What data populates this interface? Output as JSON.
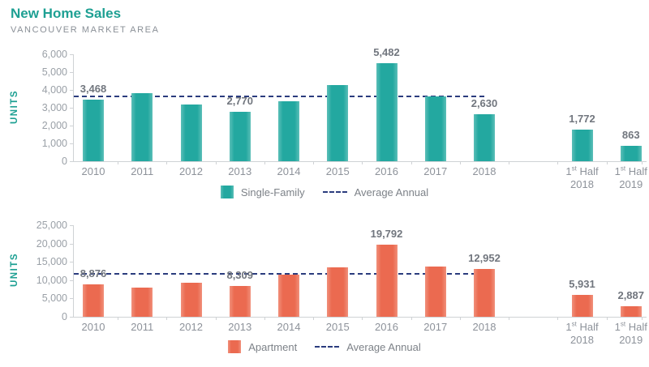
{
  "header": {
    "title": "New Home Sales",
    "subtitle": "VANCOUVER MARKET AREA"
  },
  "colors": {
    "bar_teal": "#23A8A0",
    "bar_orange": "#EB6A50",
    "average_line_navy": "#2B3C7E",
    "title_teal": "#1EA093",
    "subtitle_gray": "#8A9097",
    "axis_text_gray": "#9AA0A7",
    "value_label_gray": "#71767E"
  },
  "chart_data": [
    {
      "type": "bar",
      "series_name": "Single-Family",
      "average_legend_label": "Average Annual",
      "ylabel": "UNITS",
      "ylim": [
        0,
        6000
      ],
      "ytick_labels": [
        "6,000",
        "5,000",
        "4,000",
        "3,000",
        "2,000",
        "1,000",
        "0"
      ],
      "grid": false,
      "legend_position": "bottom-center",
      "average_annual": 3623,
      "bars": [
        {
          "slot": 0,
          "category": "2010",
          "value": 3468,
          "value_label": "3,468"
        },
        {
          "slot": 1,
          "category": "2011",
          "value": 3800
        },
        {
          "slot": 2,
          "category": "2012",
          "value": 3200
        },
        {
          "slot": 3,
          "category": "2013",
          "value": 2770,
          "value_label": "2,770"
        },
        {
          "slot": 4,
          "category": "2014",
          "value": 3350
        },
        {
          "slot": 5,
          "category": "2015",
          "value": 4280
        },
        {
          "slot": 6,
          "category": "2016",
          "value": 5482,
          "value_label": "5,482"
        },
        {
          "slot": 7,
          "category": "2017",
          "value": 3630
        },
        {
          "slot": 8,
          "category": "2018",
          "value": 2630,
          "value_label": "2,630"
        },
        {
          "slot": 10,
          "category": "2018",
          "cat_prefix": "1",
          "cat_sup": "st",
          "cat_suffix": " Half",
          "value": 1772,
          "value_label": "1,772"
        },
        {
          "slot": 11,
          "category": "2019",
          "cat_prefix": "1",
          "cat_sup": "st",
          "cat_suffix": " Half",
          "value": 863,
          "value_label": "863"
        }
      ]
    },
    {
      "type": "bar",
      "series_name": "Apartment",
      "average_legend_label": "Average Annual",
      "ylabel": "UNITS",
      "ylim": [
        0,
        25000
      ],
      "ytick_labels": [
        "25,000",
        "20,000",
        "15,000",
        "10,000",
        "5,000",
        "0"
      ],
      "grid": false,
      "legend_position": "bottom-center",
      "average_annual": 11781,
      "bars": [
        {
          "slot": 0,
          "category": "2010",
          "value": 8876,
          "value_label": "8,876"
        },
        {
          "slot": 1,
          "category": "2011",
          "value": 8000
        },
        {
          "slot": 2,
          "category": "2012",
          "value": 9400
        },
        {
          "slot": 3,
          "category": "2013",
          "value": 8309,
          "value_label": "8,309"
        },
        {
          "slot": 4,
          "category": "2014",
          "value": 11400
        },
        {
          "slot": 5,
          "category": "2015",
          "value": 13500
        },
        {
          "slot": 6,
          "category": "2016",
          "value": 19792,
          "value_label": "19,792"
        },
        {
          "slot": 7,
          "category": "2017",
          "value": 13800
        },
        {
          "slot": 8,
          "category": "2018",
          "value": 12952,
          "value_label": "12,952"
        },
        {
          "slot": 10,
          "category": "2018",
          "cat_prefix": "1",
          "cat_sup": "st",
          "cat_suffix": " Half",
          "value": 5931,
          "value_label": "5,931"
        },
        {
          "slot": 11,
          "category": "2019",
          "cat_prefix": "1",
          "cat_sup": "st",
          "cat_suffix": " Half",
          "value": 2887,
          "value_label": "2,887"
        }
      ]
    }
  ]
}
